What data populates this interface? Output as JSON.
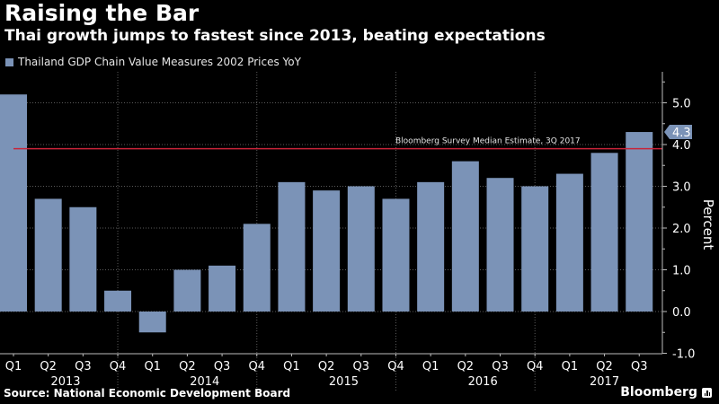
{
  "header": {
    "title": "Raising the Bar",
    "subtitle": "Thai growth jumps to fastest since 2013, beating expectations"
  },
  "footer": {
    "source": "Source: National Economic Development Board",
    "brand": "Bloomberg"
  },
  "colors": {
    "bar": "#7b93b7",
    "reference_line": "#c8243a",
    "background": "#000000",
    "text": "#ffffff",
    "grid": "#5a5a5a"
  },
  "chart_data": {
    "type": "bar",
    "title": "Raising the Bar",
    "subtitle": "Thai growth jumps to fastest since 2013, beating expectations",
    "xlabel": "",
    "ylabel": "Percent",
    "ylim": [
      -1.0,
      5.6
    ],
    "yticks": [
      -1.0,
      0.0,
      1.0,
      2.0,
      3.0,
      4.0,
      5.0
    ],
    "ytick_labels": [
      "-1.0",
      "0.0",
      "1.0",
      "2.0",
      "3.0",
      "4.0",
      "5.0"
    ],
    "grid": true,
    "legend_position": "top-left",
    "y_axis_side": "right",
    "categories": [
      "Q1",
      "Q2",
      "Q3",
      "Q4",
      "Q1",
      "Q2",
      "Q3",
      "Q4",
      "Q1",
      "Q2",
      "Q3",
      "Q4",
      "Q1",
      "Q2",
      "Q3",
      "Q4",
      "Q1",
      "Q2",
      "Q3"
    ],
    "years": [
      {
        "label": "2013",
        "quarters": 4
      },
      {
        "label": "2014",
        "quarters": 4
      },
      {
        "label": "2015",
        "quarters": 4
      },
      {
        "label": "2016",
        "quarters": 4
      },
      {
        "label": "2017",
        "quarters": 3
      }
    ],
    "series": [
      {
        "name": "Thailand GDP Chain Value Measures 2002 Prices YoY",
        "values": [
          5.2,
          2.7,
          2.5,
          0.5,
          -0.5,
          1.0,
          1.1,
          2.1,
          3.1,
          2.9,
          3.0,
          2.7,
          3.1,
          3.6,
          3.2,
          3.0,
          3.3,
          3.8,
          4.3
        ]
      }
    ],
    "last_value_label": "4.3",
    "reference_line": {
      "label": "Bloomberg Survey Median Estimate, 3Q 2017",
      "value": 3.9
    }
  }
}
